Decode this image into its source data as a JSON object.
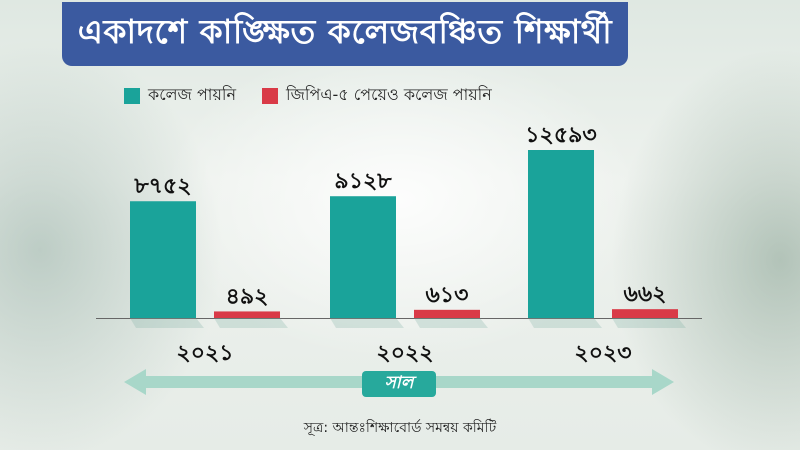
{
  "colors": {
    "title_bg": "#3b5aa0",
    "series_1": "#1aa39a",
    "series_2": "#d93a47",
    "axis_arrow": "#a8d7c9",
    "axis_title_bg": "#27a99c"
  },
  "chart_data": {
    "type": "bar",
    "title": "একাদশে কাঙ্ক্ষিত কলেজবঞ্চিত শিক্ষার্থী",
    "categories": [
      "২০২১",
      "২০২২",
      "২০২৩"
    ],
    "xlabel": "সাল",
    "ylabel": "",
    "grid": false,
    "legend_position": "top-left",
    "series": [
      {
        "name": "কলেজ পায়নি",
        "values": [
          8752,
          9128,
          12593
        ],
        "labels": [
          "৮৭৫২",
          "৯১২৮",
          "১২৫৯৩"
        ]
      },
      {
        "name": "জিপিএ-৫ পেয়েও কলেজ পায়নি",
        "values": [
          492,
          613,
          662
        ],
        "labels": [
          "৪৯২",
          "৬১৩",
          "৬৬২"
        ]
      }
    ],
    "ylim": [
      0,
      13500
    ]
  },
  "source": "সূত্র: আন্তঃশিক্ষাবোর্ড সমন্বয় কমিটি"
}
